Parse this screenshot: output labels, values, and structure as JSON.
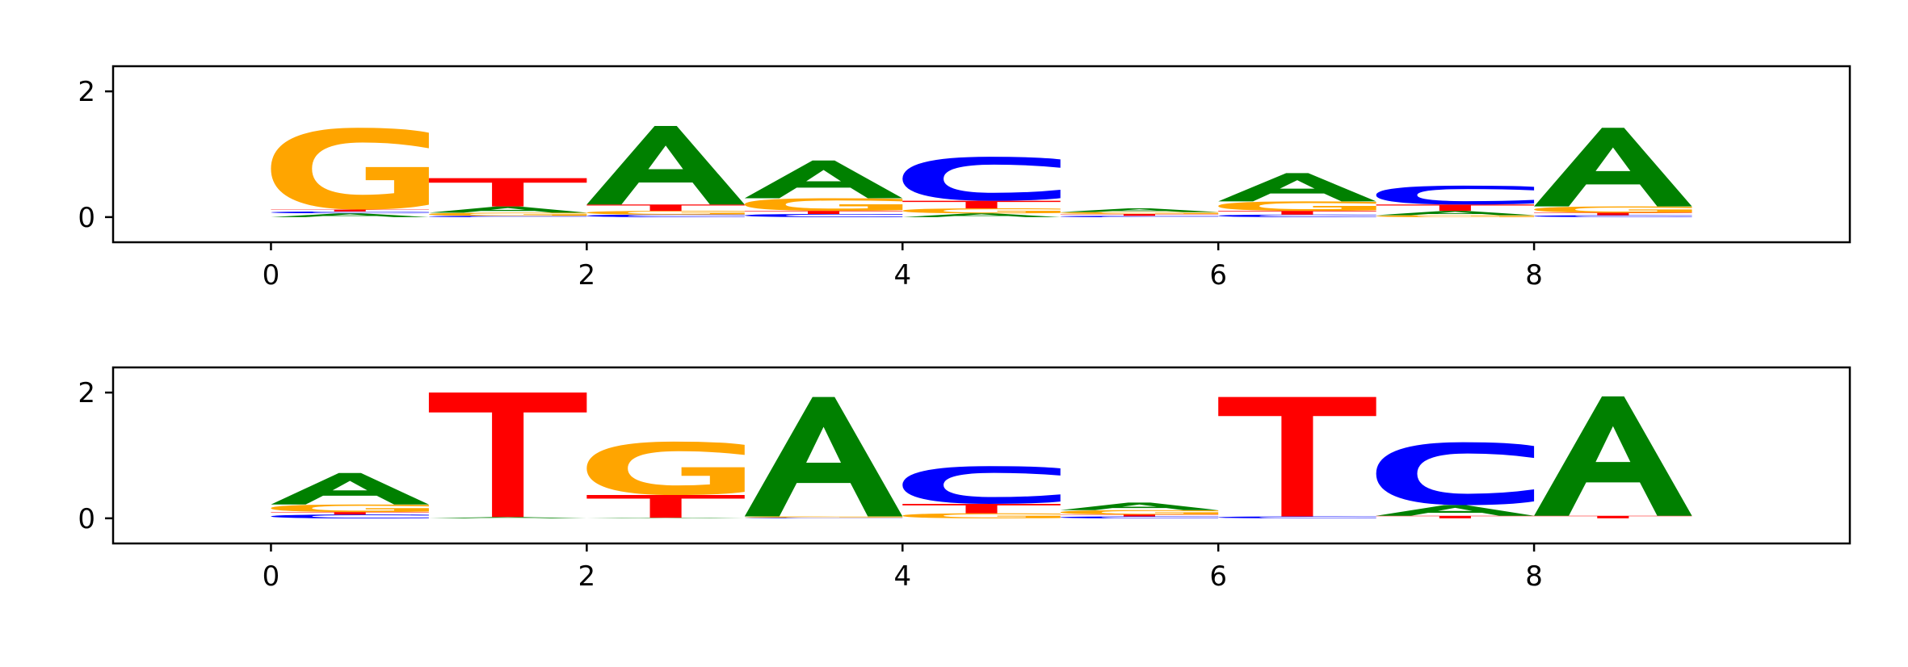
{
  "chart_data": [
    {
      "type": "sequence-logo",
      "x_ticks": [
        "0",
        "2",
        "4",
        "6",
        "8"
      ],
      "y_ticks": [
        "0",
        "2"
      ],
      "xlim": [
        -1,
        10
      ],
      "ylim": [
        -0.4,
        2.4
      ],
      "colors": {
        "A": "#008000",
        "C": "#0000ff",
        "G": "#ffa500",
        "T": "#ff0000"
      },
      "positions": [
        {
          "x": 0.5,
          "stack": [
            [
              "A",
              0.06
            ],
            [
              "C",
              0.03
            ],
            [
              "T",
              0.03
            ],
            [
              "G",
              1.3
            ]
          ]
        },
        {
          "x": 1.5,
          "stack": [
            [
              "C",
              0.02
            ],
            [
              "G",
              0.05
            ],
            [
              "A",
              0.1
            ],
            [
              "T",
              0.45
            ]
          ]
        },
        {
          "x": 2.5,
          "stack": [
            [
              "C",
              0.04
            ],
            [
              "G",
              0.06
            ],
            [
              "T",
              0.1
            ],
            [
              "A",
              1.25
            ]
          ]
        },
        {
          "x": 3.5,
          "stack": [
            [
              "C",
              0.05
            ],
            [
              "T",
              0.05
            ],
            [
              "G",
              0.2
            ],
            [
              "A",
              0.6
            ]
          ]
        },
        {
          "x": 4.5,
          "stack": [
            [
              "A",
              0.06
            ],
            [
              "G",
              0.08
            ],
            [
              "T",
              0.12
            ],
            [
              "C",
              0.7
            ]
          ]
        },
        {
          "x": 5.5,
          "stack": [
            [
              "C",
              0.02
            ],
            [
              "T",
              0.03
            ],
            [
              "G",
              0.03
            ],
            [
              "A",
              0.06
            ]
          ]
        },
        {
          "x": 6.5,
          "stack": [
            [
              "C",
              0.04
            ],
            [
              "T",
              0.06
            ],
            [
              "G",
              0.15
            ],
            [
              "A",
              0.45
            ]
          ]
        },
        {
          "x": 7.5,
          "stack": [
            [
              "G",
              0.03
            ],
            [
              "A",
              0.07
            ],
            [
              "T",
              0.1
            ],
            [
              "C",
              0.3
            ]
          ]
        },
        {
          "x": 8.5,
          "stack": [
            [
              "C",
              0.03
            ],
            [
              "T",
              0.04
            ],
            [
              "G",
              0.1
            ],
            [
              "A",
              1.25
            ]
          ]
        }
      ]
    },
    {
      "type": "sequence-logo",
      "x_ticks": [
        "0",
        "2",
        "4",
        "6",
        "8"
      ],
      "y_ticks": [
        "0",
        "2"
      ],
      "xlim": [
        -1,
        10
      ],
      "ylim": [
        -0.4,
        2.4
      ],
      "colors": {
        "A": "#008000",
        "C": "#0000ff",
        "G": "#ffa500",
        "T": "#ff0000"
      },
      "positions": [
        {
          "x": 0.5,
          "stack": [
            [
              "C",
              0.06
            ],
            [
              "T",
              0.04
            ],
            [
              "G",
              0.12
            ],
            [
              "A",
              0.5
            ]
          ]
        },
        {
          "x": 1.5,
          "stack": [
            [
              "A",
              0.02
            ],
            [
              "T",
              1.98
            ]
          ]
        },
        {
          "x": 2.5,
          "stack": [
            [
              "A",
              0.01
            ],
            [
              "T",
              0.36
            ],
            [
              "G",
              0.85
            ]
          ]
        },
        {
          "x": 3.5,
          "stack": [
            [
              "C",
              0.01
            ],
            [
              "G",
              0.02
            ],
            [
              "A",
              1.9
            ]
          ]
        },
        {
          "x": 4.5,
          "stack": [
            [
              "G",
              0.08
            ],
            [
              "T",
              0.15
            ],
            [
              "C",
              0.6
            ]
          ]
        },
        {
          "x": 5.5,
          "stack": [
            [
              "C",
              0.03
            ],
            [
              "T",
              0.03
            ],
            [
              "G",
              0.07
            ],
            [
              "A",
              0.12
            ]
          ]
        },
        {
          "x": 6.5,
          "stack": [
            [
              "C",
              0.03
            ],
            [
              "T",
              1.9
            ]
          ]
        },
        {
          "x": 7.5,
          "stack": [
            [
              "T",
              0.04
            ],
            [
              "A",
              0.17
            ],
            [
              "C",
              1.0
            ]
          ]
        },
        {
          "x": 8.5,
          "stack": [
            [
              "T",
              0.04
            ],
            [
              "A",
              1.9
            ]
          ]
        }
      ]
    }
  ]
}
